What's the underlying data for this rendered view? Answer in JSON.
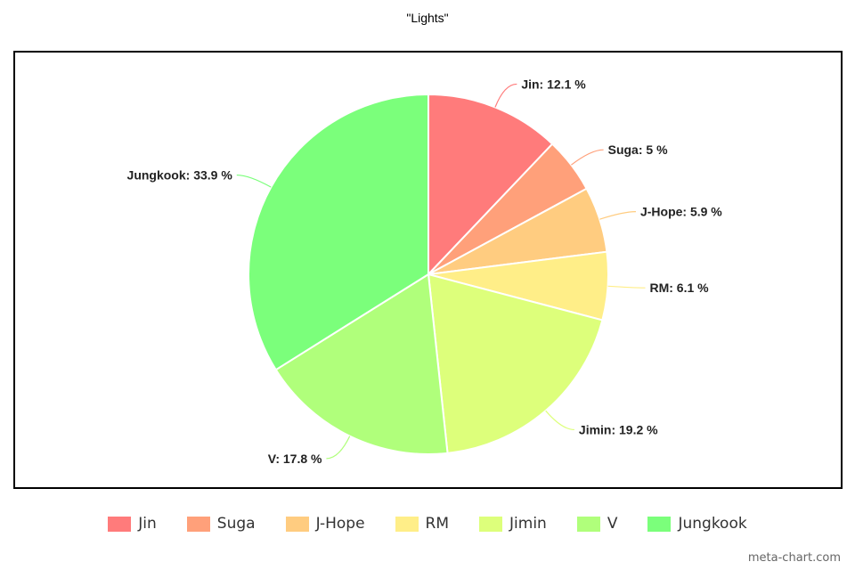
{
  "chart_data": {
    "type": "pie",
    "title": "\"Lights\"",
    "slices": [
      {
        "label": "Jin",
        "value": 12.1,
        "display": "Jin: 12.1 %",
        "color": "#ff7b7b"
      },
      {
        "label": "Suga",
        "value": 5,
        "display": "Suga: 5 %",
        "color": "#ffa07a"
      },
      {
        "label": "J-Hope",
        "value": 5.9,
        "display": "J-Hope: 5.9 %",
        "color": "#ffcc80"
      },
      {
        "label": "RM",
        "value": 6.1,
        "display": "RM: 6.1 %",
        "color": "#ffee88"
      },
      {
        "label": "Jimin",
        "value": 19.2,
        "display": "Jimin: 19.2 %",
        "color": "#ddff7b"
      },
      {
        "label": "V",
        "value": 17.8,
        "display": "V: 17.8 %",
        "color": "#b0ff7b"
      },
      {
        "label": "Jungkook",
        "value": 33.9,
        "display": "Jungkook: 33.9 %",
        "color": "#7bff7b"
      }
    ],
    "legend_position": "bottom"
  },
  "watermark": "meta-chart.com"
}
